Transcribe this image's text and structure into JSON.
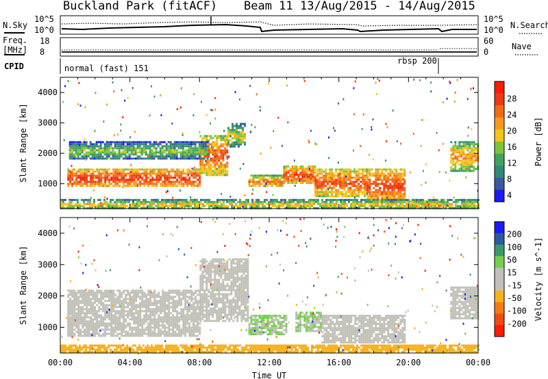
{
  "header": {
    "site": "Buckland Park (fitACF)",
    "beam": "Beam 11",
    "dates": "13/Aug/2015 - 14/Aug/2015"
  },
  "top_panels": {
    "noise": {
      "left_label": "N.Sky",
      "right_label": "N.Search",
      "left_ticks": [
        "10^5",
        "10^0"
      ],
      "right_ticks": [
        "10^5",
        "10^0"
      ]
    },
    "freq": {
      "left_label_1": "Freq.",
      "left_label_2": "[MHz]",
      "left_ticks": [
        "18",
        "8"
      ],
      "right_label": "Nave",
      "right_ticks": [
        "60",
        "0"
      ]
    },
    "cpid": {
      "label": "CPID",
      "mode_1": "normal (fast) 151",
      "mode_2": "rbsp 200"
    }
  },
  "x_axis": {
    "label": "Time UT",
    "ticks": [
      "00:00",
      "04:00",
      "08:00",
      "12:00",
      "16:00",
      "20:00",
      "00:00"
    ]
  },
  "chart_data": [
    {
      "type": "heatmap",
      "title": "Power",
      "xlabel": "Time UT",
      "ylabel": "Slant Range [km]",
      "x_range_hours": [
        0,
        24
      ],
      "y_range_km": [
        180,
        4500
      ],
      "y_ticks": [
        1000,
        2000,
        3000,
        4000
      ],
      "colorbar": {
        "label": "Power [dB]",
        "ticks": [
          "4",
          "8",
          "12",
          "16",
          "20",
          "24",
          "28"
        ],
        "colors": [
          "#1a1aff",
          "#3a5a9a",
          "#2e8a7a",
          "#3fa35a",
          "#7cc43c",
          "#f5c518",
          "#f79a1a",
          "#f26a14",
          "#ee3a12",
          "#ff1a00"
        ]
      },
      "echo_regions": [
        {
          "t0": 0.4,
          "t1": 8.0,
          "r0": 900,
          "r1": 1500,
          "level": 28
        },
        {
          "t0": 8.0,
          "t1": 9.6,
          "r0": 1300,
          "r1": 2600,
          "level": 26
        },
        {
          "t0": 9.6,
          "t1": 10.6,
          "r0": 2200,
          "r1": 3000,
          "level": 18
        },
        {
          "t0": 0.5,
          "t1": 8.5,
          "r0": 1800,
          "r1": 2400,
          "level": 16
        },
        {
          "t0": 10.8,
          "t1": 12.8,
          "r0": 900,
          "r1": 1300,
          "level": 24
        },
        {
          "t0": 12.8,
          "t1": 14.6,
          "r0": 1000,
          "r1": 1600,
          "level": 27
        },
        {
          "t0": 14.6,
          "t1": 17.6,
          "r0": 600,
          "r1": 1500,
          "level": 26
        },
        {
          "t0": 17.6,
          "t1": 19.8,
          "r0": 400,
          "r1": 1500,
          "level": 27
        },
        {
          "t0": 19.8,
          "t1": 22.0,
          "r0": 200,
          "r1": 450,
          "level": 26
        },
        {
          "t0": 22.4,
          "t1": 24.0,
          "r0": 1400,
          "r1": 2400,
          "level": 22
        },
        {
          "t0": 0.0,
          "t1": 24.0,
          "r0": 200,
          "r1": 500,
          "level": 20
        }
      ]
    },
    {
      "type": "heatmap",
      "title": "Velocity",
      "xlabel": "Time UT",
      "ylabel": "Slant Range [km]",
      "x_range_hours": [
        0,
        24
      ],
      "y_range_km": [
        180,
        4500
      ],
      "y_ticks": [
        1000,
        2000,
        3000,
        4000
      ],
      "colorbar": {
        "label": "Velocity [m s^-1]",
        "ticks": [
          "200",
          "100",
          "50",
          "15",
          "-15",
          "-50",
          "-100",
          "-200"
        ],
        "colors": [
          "#1a1aff",
          "#2a5aa0",
          "#3a9a6a",
          "#74d04a",
          "#c0c0b8",
          "#c0c0b8",
          "#f5b21a",
          "#f57a14",
          "#f24a12",
          "#ff1a00"
        ]
      },
      "echo_regions": [
        {
          "t0": 0.4,
          "t1": 8.0,
          "r0": 700,
          "r1": 2200,
          "level": 0
        },
        {
          "t0": 8.0,
          "t1": 10.8,
          "r0": 1200,
          "r1": 3200,
          "level": 0
        },
        {
          "t0": 10.8,
          "t1": 13.0,
          "r0": 800,
          "r1": 1400,
          "level": 40
        },
        {
          "t0": 13.5,
          "t1": 15.0,
          "r0": 900,
          "r1": 1500,
          "level": 40
        },
        {
          "t0": 15.0,
          "t1": 19.8,
          "r0": 500,
          "r1": 1400,
          "level": 0
        },
        {
          "t0": 22.4,
          "t1": 24.0,
          "r0": 1300,
          "r1": 2300,
          "level": 0
        },
        {
          "t0": 0.0,
          "t1": 24.0,
          "r0": 200,
          "r1": 450,
          "level": -60
        }
      ]
    }
  ]
}
